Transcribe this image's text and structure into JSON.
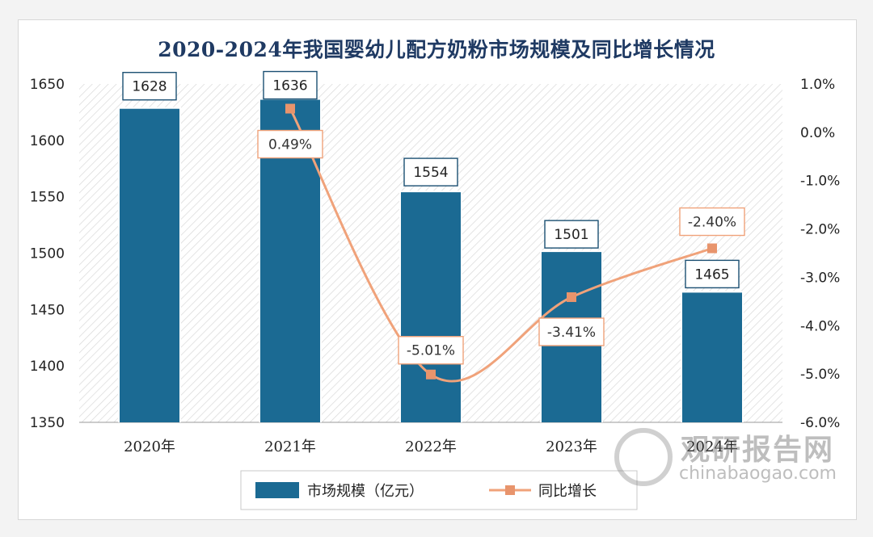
{
  "chart_data": {
    "type": "bar",
    "title": "2020-2024年我国婴幼儿配方奶粉市场规模及同比增长情况",
    "categories": [
      "2020年",
      "2021年",
      "2022年",
      "2023年",
      "2024年"
    ],
    "series": [
      {
        "name": "市场规模（亿元）",
        "type": "bar",
        "axis": "left",
        "values": [
          1628,
          1636,
          1554,
          1501,
          1465
        ],
        "labels": [
          "1628",
          "1636",
          "1554",
          "1501",
          "1465"
        ]
      },
      {
        "name": "同比增长",
        "type": "line",
        "axis": "right",
        "values": [
          null,
          0.49,
          -5.01,
          -3.41,
          -2.4
        ],
        "labels": [
          "",
          "0.49%",
          "-5.01%",
          "-3.41%",
          "-2.40%"
        ]
      }
    ],
    "y_left": {
      "min": 1350,
      "max": 1650,
      "ticks": [
        "1650",
        "1600",
        "1550",
        "1500",
        "1450",
        "1400",
        "1350"
      ]
    },
    "y_right": {
      "min": -6.0,
      "max": 1.0,
      "ticks": [
        "1.0%",
        "0.0%",
        "-1.0%",
        "-2.0%",
        "-3.0%",
        "-4.0%",
        "-5.0%",
        "-6.0%"
      ]
    },
    "colors": {
      "bar": "#1b6a93",
      "line": "#f0a27a",
      "marker": "#e8946c",
      "title": "#1f3a63",
      "label_border": "#1b4f72",
      "line_label_border": "#f0a27a"
    },
    "legend": {
      "bar_label": "市场规模（亿元）",
      "line_label": "同比增长"
    }
  },
  "watermark": {
    "brand": "观研报告网",
    "url": "chinabaogao.com"
  }
}
